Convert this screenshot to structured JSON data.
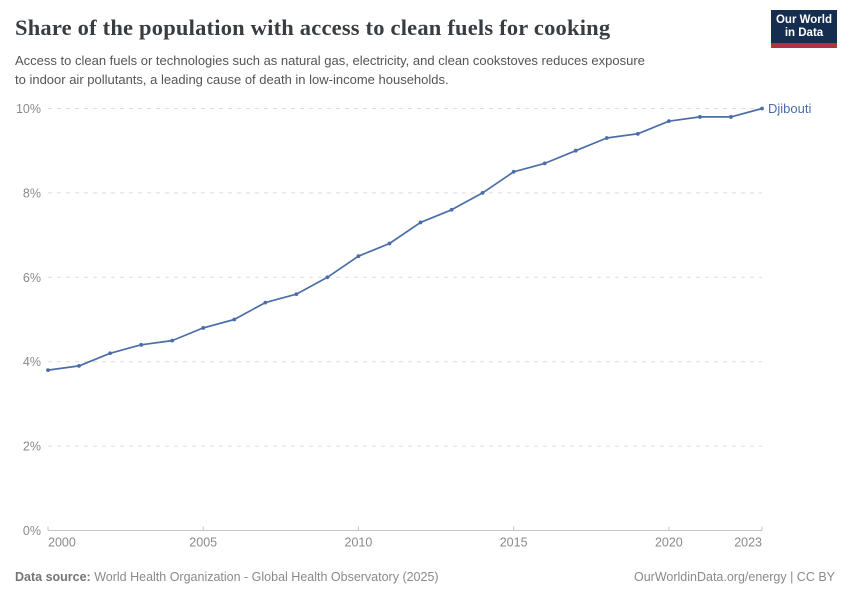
{
  "header": {
    "title": "Share of the population with access to clean fuels for cooking",
    "subtitle_lines": [
      "Access to clean fuels or technologies such as natural gas, electricity, and clean cookstoves reduces exposure",
      "to indoor air pollutants, a leading cause of death in low-income households."
    ],
    "logo": {
      "line1": "Our World",
      "line2": "in Data",
      "bg_color": "#152D4E",
      "stripe_color": "#B0343C"
    }
  },
  "chart_data": {
    "type": "line",
    "title": "Share of the population with access to clean fuels for cooking",
    "x": [
      2000,
      2001,
      2002,
      2003,
      2004,
      2005,
      2006,
      2007,
      2008,
      2009,
      2010,
      2011,
      2012,
      2013,
      2014,
      2015,
      2016,
      2017,
      2018,
      2019,
      2020,
      2021,
      2022,
      2023
    ],
    "series": [
      {
        "name": "Djibouti",
        "values": [
          3.8,
          3.9,
          4.2,
          4.4,
          4.5,
          4.8,
          5.0,
          5.4,
          5.6,
          6.0,
          6.5,
          6.8,
          7.3,
          7.6,
          8.0,
          8.5,
          8.7,
          9.0,
          9.3,
          9.4,
          9.7,
          9.8,
          9.8,
          10.0
        ]
      }
    ],
    "xlim": [
      2000,
      2023
    ],
    "ylim": [
      0,
      10
    ],
    "y_ticks": [
      {
        "value": 0,
        "label": "0%"
      },
      {
        "value": 2,
        "label": "2%"
      },
      {
        "value": 4,
        "label": "4%"
      },
      {
        "value": 6,
        "label": "6%"
      },
      {
        "value": 8,
        "label": "8%"
      },
      {
        "value": 10,
        "label": "10%"
      }
    ],
    "x_ticks": [
      {
        "value": 2000,
        "label": "2000"
      },
      {
        "value": 2005,
        "label": "2005"
      },
      {
        "value": 2010,
        "label": "2010"
      },
      {
        "value": 2015,
        "label": "2015"
      },
      {
        "value": 2020,
        "label": "2020"
      },
      {
        "value": 2023,
        "label": "2023"
      }
    ],
    "line_color": "#4C6EA8",
    "grid": "dashed",
    "grid_color": "#dcdcdc",
    "axis_color": "#c2c6ca",
    "tick_label_color": "#8a8a8a",
    "legend_position": "end-of-line"
  },
  "footer": {
    "datasource_label": "Data source:",
    "datasource_value": " World Health Organization - Global Health Observatory (2025)",
    "link_text": "OurWorldinData.org/energy | CC BY"
  }
}
